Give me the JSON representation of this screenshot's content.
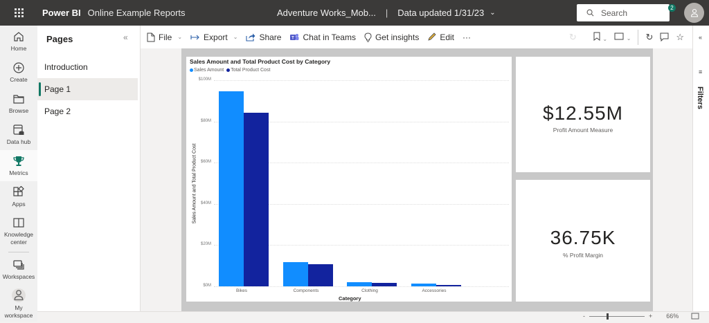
{
  "topbar": {
    "brand": "Power BI",
    "workspace": "Online Example Reports",
    "report_name": "Adventure Works_Mob...",
    "separator": "|",
    "data_updated": "Data updated 1/31/23",
    "search_placeholder": "Search",
    "more": "...",
    "notification_count": "2"
  },
  "leftnav": {
    "items": [
      {
        "label": "Home",
        "icon": "home-icon"
      },
      {
        "label": "Create",
        "icon": "plus-circle-icon"
      },
      {
        "label": "Browse",
        "icon": "folder-icon"
      },
      {
        "label": "Data hub",
        "icon": "data-hub-icon"
      },
      {
        "label": "Metrics",
        "icon": "trophy-icon",
        "active": true
      },
      {
        "label": "Apps",
        "icon": "apps-icon"
      },
      {
        "label": "Knowledge center",
        "icon": "book-icon"
      },
      {
        "label": "Workspaces",
        "icon": "workspaces-icon"
      },
      {
        "label": "My workspace",
        "icon": "user-icon"
      }
    ]
  },
  "pages_panel": {
    "title": "Pages",
    "collapse": "«",
    "pages": [
      {
        "label": "Introduction",
        "active": false
      },
      {
        "label": "Page 1",
        "active": true
      },
      {
        "label": "Page 2",
        "active": false
      }
    ]
  },
  "toolbar": {
    "file": "File",
    "export": "Export",
    "share": "Share",
    "chat_teams": "Chat in Teams",
    "insights": "Get insights",
    "edit": "Edit",
    "more": "···"
  },
  "visuals": {
    "kpi1": {
      "value": "$12.55M",
      "label": "Profit Amount Measure"
    },
    "kpi2": {
      "value": "36.75K",
      "label": "% Profit Margin"
    }
  },
  "filters": {
    "label": "Filters"
  },
  "statusbar": {
    "zoom_minus": "-",
    "zoom_plus": "+",
    "zoom_level": "66%"
  },
  "colors": {
    "sales": "#118dff",
    "cost": "#12239e",
    "accent": "#117865"
  },
  "chart_data": {
    "type": "bar",
    "title": "Sales Amount and Total Product Cost by Category",
    "xlabel": "Category",
    "ylabel": "Sales Amount and Total Product Cost",
    "categories": [
      "Bikes",
      "Components",
      "Clothing",
      "Accessories"
    ],
    "series": [
      {
        "name": "Sales Amount",
        "color": "#118dff",
        "values": [
          94.6,
          11.8,
          2.1,
          1.3
        ]
      },
      {
        "name": "Total Product Cost",
        "color": "#12239e",
        "values": [
          84.2,
          10.7,
          1.7,
          0.6
        ]
      }
    ],
    "unit": "$M",
    "yticks": [
      "$100M",
      "$80M",
      "$60M",
      "$40M",
      "$20M",
      "$0M"
    ],
    "ylim": [
      0,
      100
    ],
    "legend_position": "top-left",
    "grid": true
  }
}
